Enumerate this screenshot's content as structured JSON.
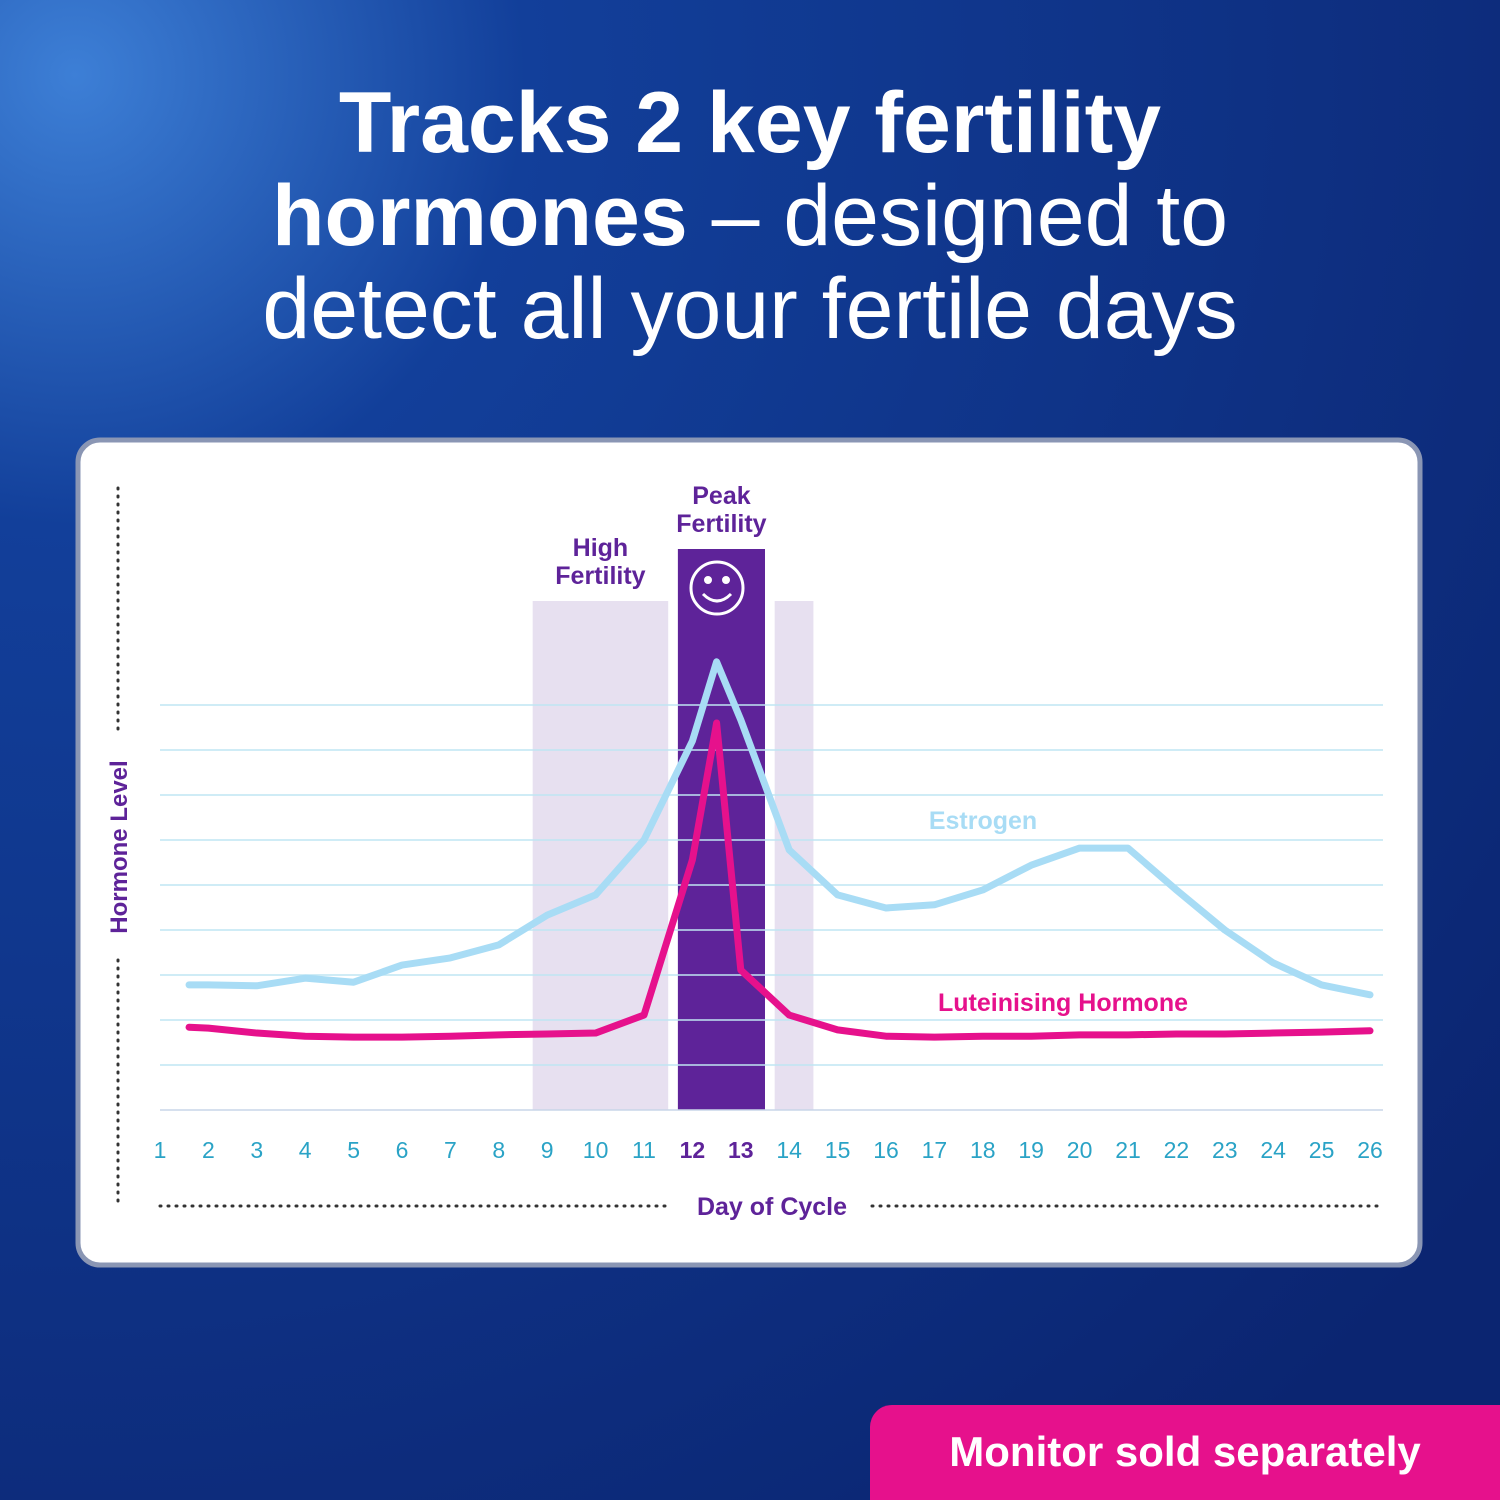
{
  "header": {
    "title_bold": [
      "Tracks 2 key fertility",
      "hormones"
    ],
    "title_regular": [
      "– designed to",
      "detect all your fertile days"
    ]
  },
  "chart_data": {
    "type": "line",
    "y_label": "Hormone Level",
    "x_label": "Day of Cycle",
    "xlim": [
      1,
      26
    ],
    "xticks": [
      1,
      2,
      3,
      4,
      5,
      6,
      7,
      8,
      9,
      10,
      11,
      12,
      13,
      14,
      15,
      16,
      17,
      18,
      19,
      20,
      21,
      22,
      23,
      24,
      25,
      26
    ],
    "ylim": [
      0,
      10
    ],
    "yticks": [
      0,
      1,
      2,
      3,
      4,
      5,
      6,
      7,
      8,
      9
    ],
    "grid": true,
    "bands": [
      {
        "label": "High Fertility",
        "from": 8.7,
        "to": 11.5,
        "color": "#e7e0f0"
      },
      {
        "label": "Peak Fertility",
        "from": 11.7,
        "to": 13.5,
        "color": "#5e2399"
      },
      {
        "from": 13.7,
        "to": 14.5,
        "color": "#e7e0f0"
      }
    ],
    "x": [
      1.6,
      2,
      3,
      4,
      5,
      6,
      7,
      8,
      9,
      10,
      11,
      12,
      12.5,
      13,
      14,
      15,
      16,
      17,
      18,
      19,
      20,
      21,
      22,
      23,
      24,
      25,
      26
    ],
    "series": [
      {
        "name": "Estrogen",
        "color": "#a8dcf5",
        "values": [
          2.78,
          2.78,
          2.76,
          2.93,
          2.84,
          3.22,
          3.38,
          3.67,
          4.33,
          4.78,
          6.0,
          8.2,
          9.96,
          8.67,
          5.78,
          4.78,
          4.49,
          4.56,
          4.89,
          5.44,
          5.82,
          5.82,
          4.89,
          4.0,
          3.27,
          2.78,
          2.56
        ]
      },
      {
        "name": "Luteinising Hormone",
        "color": "#e6118c",
        "values": [
          1.84,
          1.82,
          1.71,
          1.64,
          1.62,
          1.62,
          1.64,
          1.67,
          1.69,
          1.71,
          2.11,
          5.56,
          8.6,
          3.11,
          2.11,
          1.78,
          1.64,
          1.62,
          1.64,
          1.64,
          1.67,
          1.67,
          1.69,
          1.69,
          1.71,
          1.73,
          1.76
        ]
      }
    ]
  },
  "badge": "Monitor sold separately"
}
